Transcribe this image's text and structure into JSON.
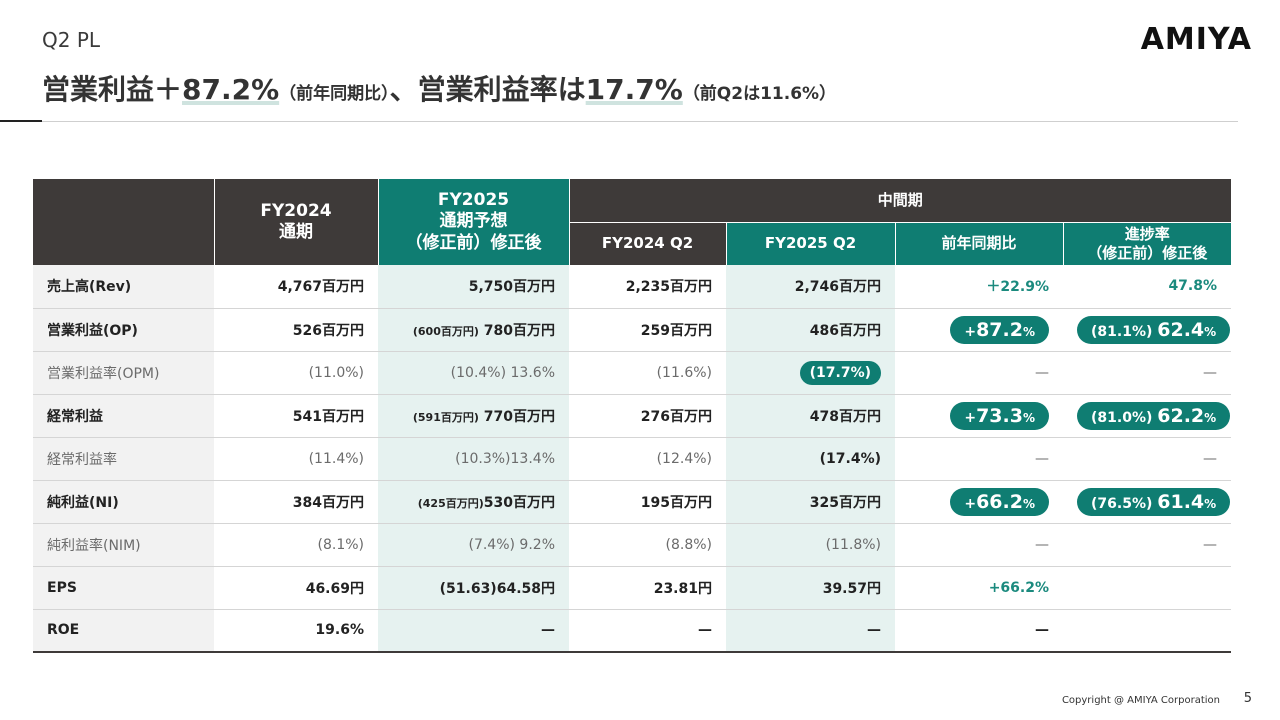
{
  "header": {
    "section": "Q2 PL",
    "logo": "AMIYA",
    "headline": {
      "p1": "営業利益＋",
      "p2": "87.2%",
      "p3": "（前年同期比）",
      "p4": "、営業利益率は",
      "p5": "17.7%",
      "p6": "（前Q2は11.6%）"
    }
  },
  "table": {
    "headers": {
      "fy2024_line1": "FY2024",
      "fy2024_line2": "通期",
      "fy2025_line1": "FY2025",
      "fy2025_line2": "通期予想",
      "fy2025_line3": "（修正前）修正後",
      "interim": "中間期",
      "fy2024q2": "FY2024 Q2",
      "fy2025q2": "FY2025 Q2",
      "yoy": "前年同期比",
      "progress_line1": "進捗率",
      "progress_line2": "（修正前）修正後"
    },
    "rows": {
      "rev": {
        "label": "売上高(Rev)",
        "fy2024": "4,767百万円",
        "fy2025": "5,750百万円",
        "q2_2024": "2,235百万円",
        "q2_2025": "2,746百万円",
        "yoy": "＋22.9%",
        "progress": "47.8%"
      },
      "op": {
        "label": "営業利益(OP)",
        "fy2024": "526百万円",
        "fy2025_before": "(600百万円)",
        "fy2025_after": "780百万円",
        "q2_2024": "259百万円",
        "q2_2025": "486百万円",
        "yoy_sign": "+",
        "yoy_num": "87.2",
        "yoy_pct": "%",
        "progress_before": "(81.1%)",
        "progress_num": "62.4",
        "progress_pct": "%"
      },
      "opm": {
        "label": "営業利益率(OPM)",
        "fy2024": "(11.0%)",
        "fy2025": "(10.4%) 13.6%",
        "q2_2024": "(11.6%)",
        "q2_2025": "(17.7%)",
        "yoy": "—",
        "progress": "—"
      },
      "ordinary": {
        "label": "経常利益",
        "fy2024": "541百万円",
        "fy2025_before": "(591百万円)",
        "fy2025_after": "770百万円",
        "q2_2024": "276百万円",
        "q2_2025": "478百万円",
        "yoy_sign": "+",
        "yoy_num": "73.3",
        "yoy_pct": "%",
        "progress_before": "(81.0%)",
        "progress_num": "62.2",
        "progress_pct": "%"
      },
      "ordinary_rate": {
        "label": "経常利益率",
        "fy2024": "(11.4%)",
        "fy2025": "(10.3%)13.4%",
        "q2_2024": "(12.4%)",
        "q2_2025": "(17.4%)",
        "yoy": "—",
        "progress": "—"
      },
      "ni": {
        "label": "純利益(NI)",
        "fy2024": "384百万円",
        "fy2025_before": "(425百万円)",
        "fy2025_after": "530百万円",
        "q2_2024": "195百万円",
        "q2_2025": "325百万円",
        "yoy_sign": "+",
        "yoy_num": "66.2",
        "yoy_pct": "%",
        "progress_before": "(76.5%)",
        "progress_num": "61.4",
        "progress_pct": "%"
      },
      "nim": {
        "label": "純利益率(NIM)",
        "fy2024": "(8.1%)",
        "fy2025": "(7.4%) 9.2%",
        "q2_2024": "(8.8%)",
        "q2_2025": "(11.8%)",
        "yoy": "—",
        "progress": "—"
      },
      "eps": {
        "label": "EPS",
        "fy2024": "46.69円",
        "fy2025": "(51.63)64.58円",
        "q2_2024": "23.81円",
        "q2_2025": "39.57円",
        "yoy": "+66.2%",
        "progress": ""
      },
      "roe": {
        "label": "ROE",
        "fy2024": "19.6%",
        "fy2025": "—",
        "q2_2024": "—",
        "q2_2025": "—",
        "yoy": "—",
        "progress": ""
      }
    }
  },
  "footer": {
    "copyright": "Copyright @ AMIYA Corporation",
    "page": "5"
  },
  "colors": {
    "accent": "#0f7d72",
    "header_dark": "#3e3a39",
    "tint": "#e6f2f0"
  }
}
